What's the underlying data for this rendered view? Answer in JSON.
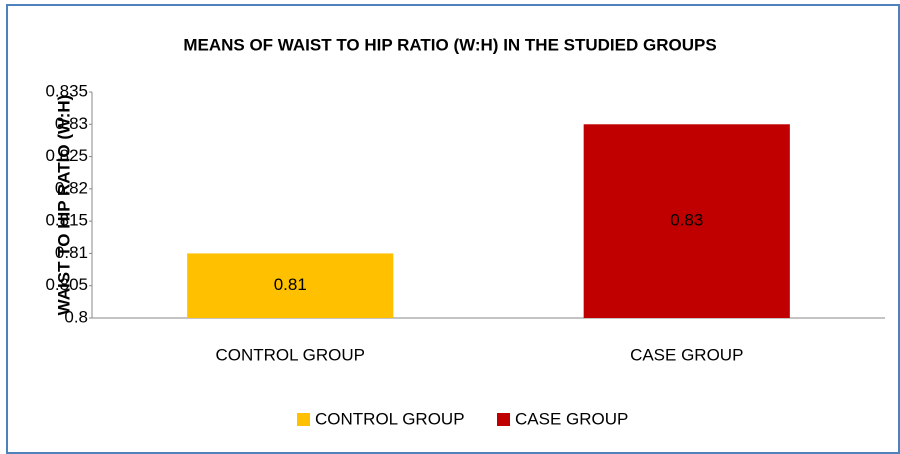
{
  "chart_data": {
    "type": "bar",
    "title": "MEANS OF WAIST TO HIP RATIO (W:H) IN THE STUDIED GROUPS",
    "y_label": "WAIST TO HIP RATIO (W:H)",
    "categories": [
      "CONTROL GROUP",
      "CASE GROUP"
    ],
    "values": [
      0.81,
      0.83
    ],
    "colors": [
      "#ffc000",
      "#c00000"
    ],
    "ylim": [
      0.8,
      0.835
    ],
    "yticks": [
      0.8,
      0.805,
      0.81,
      0.815,
      0.82,
      0.825,
      0.83,
      0.835
    ],
    "grid": false,
    "legend": "bottom"
  }
}
